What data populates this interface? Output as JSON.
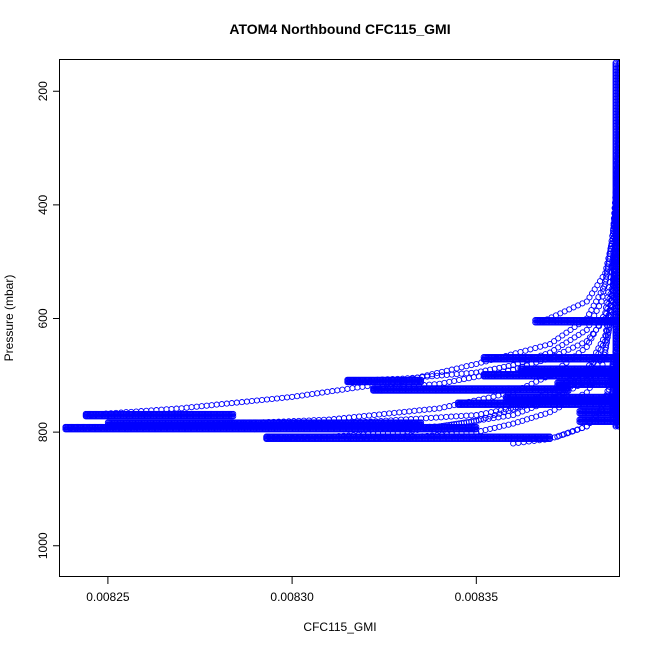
{
  "chart_data": {
    "type": "scatter",
    "title": "ATOM4 Northbound CFC115_GMI",
    "xlabel": "CFC115_GMI",
    "ylabel": "Pressure (mbar)",
    "xlim": [
      0.008237,
      0.008389
    ],
    "ylim": [
      1055,
      145
    ],
    "y_reversed": true,
    "x_ticks": [
      0.00825,
      0.0083,
      0.00835
    ],
    "x_tick_labels": [
      "0.00825",
      "0.00830",
      "0.00835"
    ],
    "y_ticks": [
      200,
      400,
      600,
      800,
      1000
    ],
    "y_tick_labels": [
      "200",
      "400",
      "600",
      "800",
      "1000"
    ],
    "marker": "open-circle",
    "marker_color": "#0000ff",
    "grid": false,
    "legend": "none",
    "series": [
      {
        "profiles": [
          {
            "points": [
              [
                0.0082385,
                792
              ],
              [
                0.00826,
                791
              ],
              [
                0.00829,
                788
              ],
              [
                0.00832,
                782
              ],
              [
                0.00835,
                770
              ],
              [
                0.00837,
                745
              ],
              [
                0.00838,
                700
              ],
              [
                0.008385,
                640
              ],
              [
                0.008387,
                560
              ],
              [
                0.008388,
                450
              ],
              [
                0.0083885,
                330
              ],
              [
                0.008389,
                150
              ]
            ]
          },
          {
            "points": [
              [
                0.008244,
                770
              ],
              [
                0.00827,
                758
              ],
              [
                0.0083,
                738
              ],
              [
                0.00833,
                710
              ],
              [
                0.00835,
                680
              ],
              [
                0.00837,
                645
              ],
              [
                0.00838,
                600
              ],
              [
                0.008385,
                540
              ],
              [
                0.008387,
                460
              ],
              [
                0.008388,
                360
              ],
              [
                0.0083888,
                250
              ],
              [
                0.008389,
                150
              ]
            ]
          },
          {
            "points": [
              [
                0.00825,
                790
              ],
              [
                0.00828,
                786
              ],
              [
                0.00831,
                778
              ],
              [
                0.00834,
                758
              ],
              [
                0.00836,
                730
              ],
              [
                0.00837,
                700
              ],
              [
                0.00838,
                650
              ],
              [
                0.008385,
                590
              ],
              [
                0.008387,
                500
              ],
              [
                0.008388,
                380
              ],
              [
                0.008389,
                200
              ]
            ]
          },
          {
            "points": [
              [
                0.008293,
                810
              ],
              [
                0.00831,
                808
              ],
              [
                0.00833,
                800
              ],
              [
                0.00835,
                780
              ],
              [
                0.00836,
                760
              ],
              [
                0.00837,
                730
              ],
              [
                0.00838,
                690
              ],
              [
                0.008385,
                630
              ],
              [
                0.008387,
                550
              ],
              [
                0.008388,
                420
              ],
              [
                0.008389,
                250
              ]
            ]
          },
          {
            "points": [
              [
                0.008316,
                812
              ],
              [
                0.00833,
                810
              ],
              [
                0.00835,
                800
              ],
              [
                0.00836,
                785
              ],
              [
                0.00837,
                765
              ],
              [
                0.00838,
                730
              ],
              [
                0.008384,
                690
              ],
              [
                0.008386,
                620
              ],
              [
                0.008388,
                500
              ],
              [
                0.008389,
                300
              ]
            ]
          },
          {
            "points": [
              [
                0.00832,
                795
              ],
              [
                0.00834,
                790
              ],
              [
                0.00836,
                770
              ],
              [
                0.00837,
                745
              ],
              [
                0.00838,
                710
              ],
              [
                0.008385,
                660
              ],
              [
                0.008387,
                580
              ],
              [
                0.008388,
                470
              ],
              [
                0.008389,
                330
              ]
            ]
          },
          {
            "points": [
              [
                0.008315,
                710
              ],
              [
                0.00833,
                706
              ],
              [
                0.00835,
                695
              ],
              [
                0.00836,
                682
              ],
              [
                0.00837,
                660
              ],
              [
                0.00838,
                620
              ],
              [
                0.008384,
                570
              ],
              [
                0.008386,
                500
              ],
              [
                0.008388,
                400
              ],
              [
                0.008389,
                260
              ]
            ]
          },
          {
            "points": [
              [
                0.00836,
                820
              ],
              [
                0.00837,
                812
              ],
              [
                0.00838,
                790
              ],
              [
                0.008384,
                760
              ],
              [
                0.008386,
                720
              ],
              [
                0.008388,
                650
              ],
              [
                0.008389,
                500
              ]
            ]
          },
          {
            "points": [
              [
                0.008372,
                808
              ],
              [
                0.00838,
                790
              ],
              [
                0.008384,
                760
              ],
              [
                0.008386,
                725
              ],
              [
                0.008388,
                680
              ],
              [
                0.008389,
                580
              ]
            ]
          },
          {
            "points": [
              [
                0.008322,
                725
              ],
              [
                0.00834,
                715
              ],
              [
                0.00836,
                690
              ],
              [
                0.00837,
                670
              ],
              [
                0.00838,
                640
              ],
              [
                0.008385,
                600
              ],
              [
                0.008387,
                540
              ],
              [
                0.008388,
                440
              ],
              [
                0.008389,
                320
              ]
            ]
          },
          {
            "points": [
              [
                0.008368,
                605
              ],
              [
                0.00838,
                570
              ],
              [
                0.008385,
                520
              ],
              [
                0.008387,
                460
              ],
              [
                0.008388,
                380
              ],
              [
                0.008389,
                270
              ]
            ]
          }
        ],
        "bands": [
          {
            "x": [
              0.0082385,
              0.00835
            ],
            "y": 793
          },
          {
            "x": [
              0.008244,
              0.008284
            ],
            "y": 770
          },
          {
            "x": [
              0.00825,
              0.008335
            ],
            "y": 785
          },
          {
            "x": [
              0.008293,
              0.00837
            ],
            "y": 810
          },
          {
            "x": [
              0.008315,
              0.008335
            ],
            "y": 710
          },
          {
            "x": [
              0.008322,
              0.008375
            ],
            "y": 725
          },
          {
            "x": [
              0.008352,
              0.008389
            ],
            "y": 670
          },
          {
            "x": [
              0.008352,
              0.008389
            ],
            "y": 700
          },
          {
            "x": [
              0.008345,
              0.008389
            ],
            "y": 750
          },
          {
            "x": [
              0.008362,
              0.008389
            ],
            "y": 690
          },
          {
            "x": [
              0.008358,
              0.008389
            ],
            "y": 740
          },
          {
            "x": [
              0.008372,
              0.008389
            ],
            "y": 715
          },
          {
            "x": [
              0.008378,
              0.008389
            ],
            "y": 765
          },
          {
            "x": [
              0.008378,
              0.008389
            ],
            "y": 780
          },
          {
            "x": [
              0.008366,
              0.008389
            ],
            "y": 605
          }
        ],
        "verticals": [
          {
            "x": 0.0083888,
            "y": [
              150,
              790
            ]
          },
          {
            "x": 0.0083878,
            "y": [
              150,
              790
            ]
          },
          {
            "x": 0.008387,
            "y": [
              680,
              770
            ]
          },
          {
            "x": 0.0083885,
            "y": [
              680,
              790
            ]
          }
        ]
      }
    ]
  }
}
